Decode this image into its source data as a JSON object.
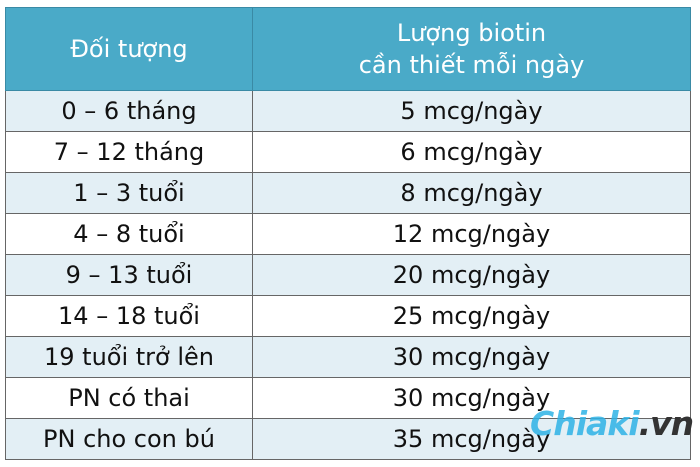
{
  "header": {
    "col1": "Đối tượng",
    "col2_line1": "Lượng biotin",
    "col2_line2": "cần thiết mỗi ngày"
  },
  "rows": [
    {
      "group": "0 – 6 tháng",
      "amount": "5 mcg/ngày"
    },
    {
      "group": "7 – 12 tháng",
      "amount": "6 mcg/ngày"
    },
    {
      "group": "1 – 3 tuổi",
      "amount": "8 mcg/ngày"
    },
    {
      "group": "4 – 8 tuổi",
      "amount": "12 mcg/ngày"
    },
    {
      "group": "9 – 13 tuổi",
      "amount": "20 mcg/ngày"
    },
    {
      "group": "14 – 18 tuổi",
      "amount": "25 mcg/ngày"
    },
    {
      "group": "19 tuổi trở lên",
      "amount": "30 mcg/ngày"
    },
    {
      "group": "PN có thai",
      "amount": "30 mcg/ngày"
    },
    {
      "group": "PN cho con bú",
      "amount": "35 mcg/ngày"
    }
  ],
  "watermark": {
    "brand": "Chiaki",
    "suffix": ".vn"
  },
  "colors": {
    "header_bg": "#4aaac8",
    "alt_row": "#e3eff5"
  }
}
